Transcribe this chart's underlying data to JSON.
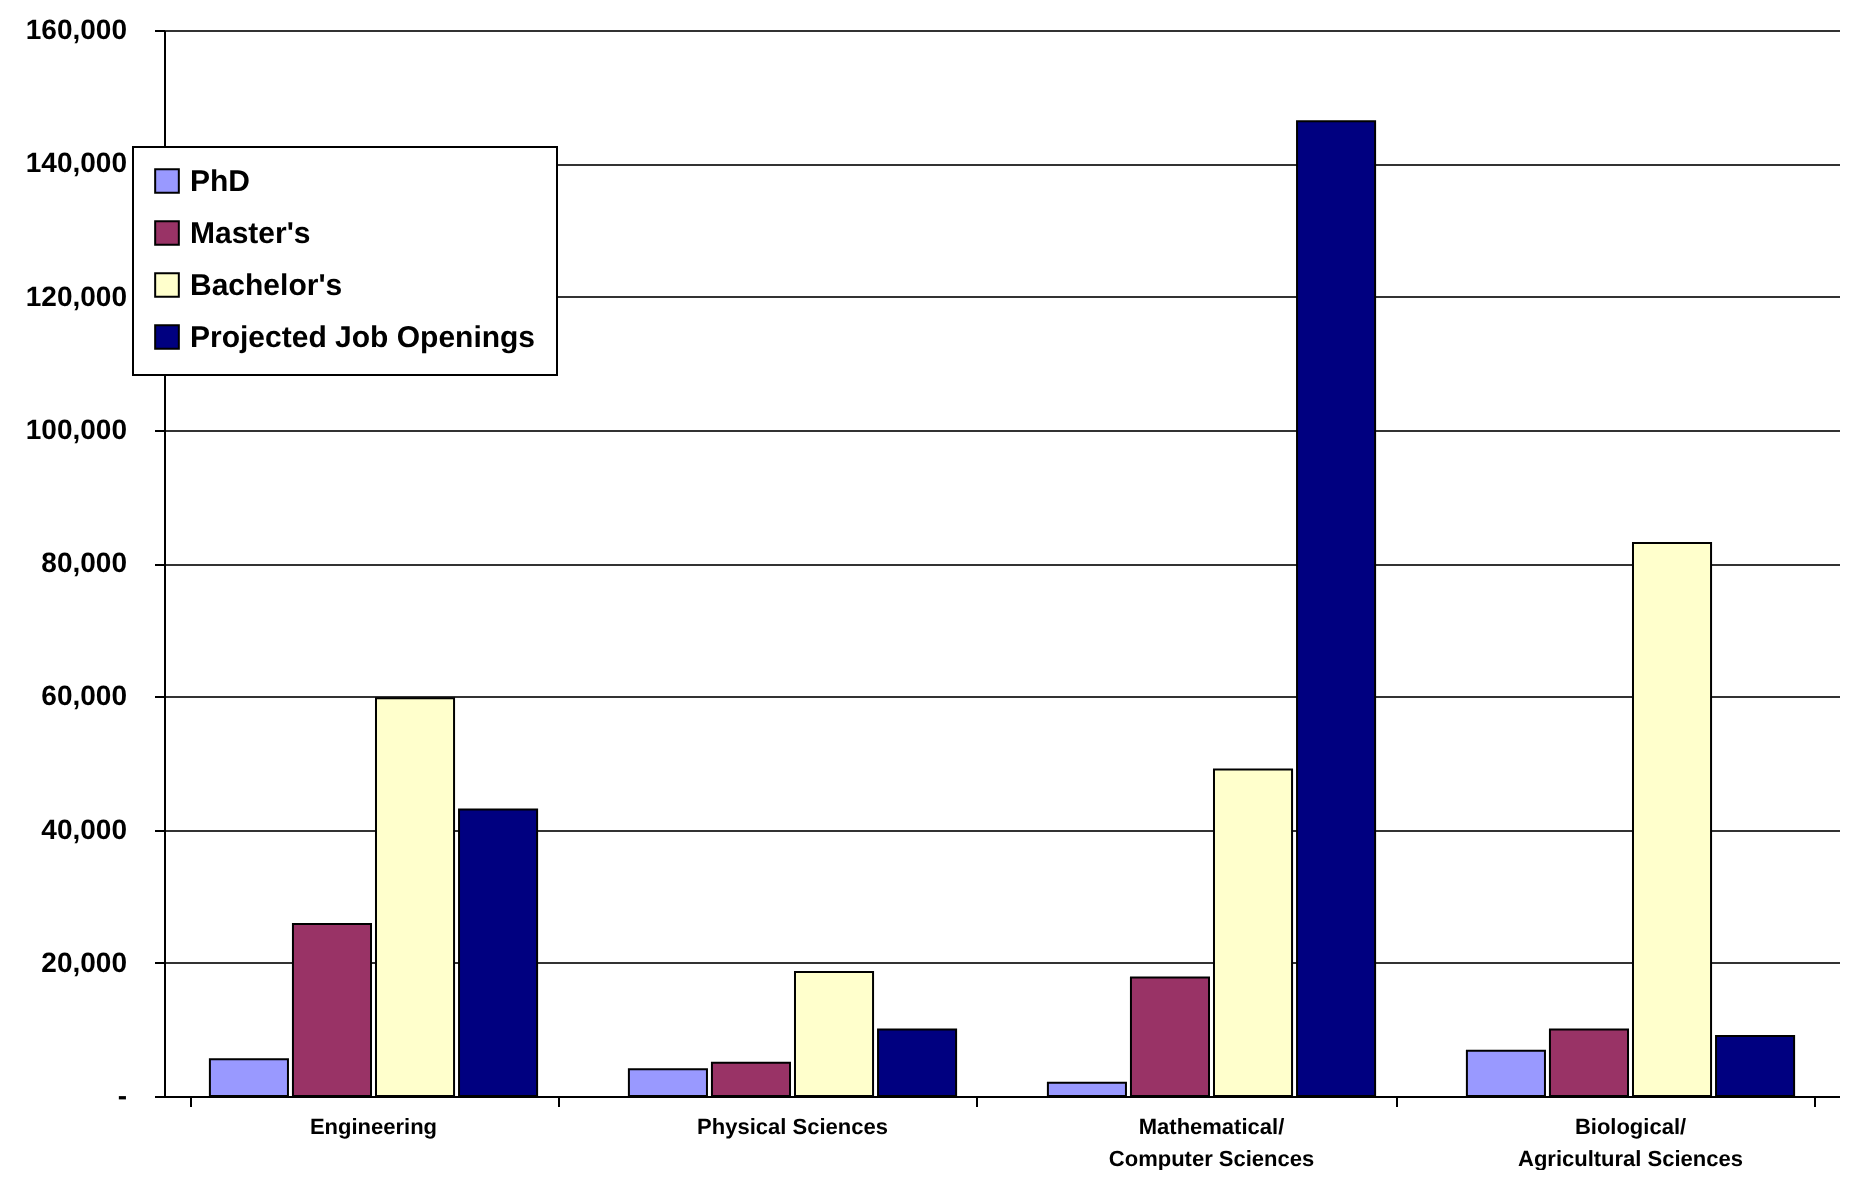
{
  "chart_data": {
    "type": "bar",
    "categories": [
      "Engineering",
      "Physical Sciences",
      "Mathematical/ Computer Sciences",
      "Biological/ Agricultural Sciences"
    ],
    "series": [
      {
        "name": "PhD",
        "color": "#9999ff",
        "values": [
          5500,
          4000,
          2000,
          6800
        ]
      },
      {
        "name": "Master's",
        "color": "#993366",
        "values": [
          25800,
          5000,
          17800,
          10000
        ]
      },
      {
        "name": "Bachelor's",
        "color": "#ffffcc",
        "values": [
          59700,
          18600,
          49000,
          83000
        ]
      },
      {
        "name": "Projected Job Openings",
        "color": "#000080",
        "values": [
          43000,
          10000,
          146300,
          9000
        ]
      }
    ],
    "ylim": [
      0,
      160000
    ],
    "yticks": [
      {
        "value": 0,
        "label": "-"
      },
      {
        "value": 20000,
        "label": "20,000"
      },
      {
        "value": 40000,
        "label": "40,000"
      },
      {
        "value": 60000,
        "label": "60,000"
      },
      {
        "value": 80000,
        "label": "80,000"
      },
      {
        "value": 100000,
        "label": "100,000"
      },
      {
        "value": 120000,
        "label": "120,000"
      },
      {
        "value": 140000,
        "label": "140,000"
      },
      {
        "value": 160000,
        "label": "160,000"
      }
    ],
    "grid": "y",
    "legend": "top left"
  }
}
